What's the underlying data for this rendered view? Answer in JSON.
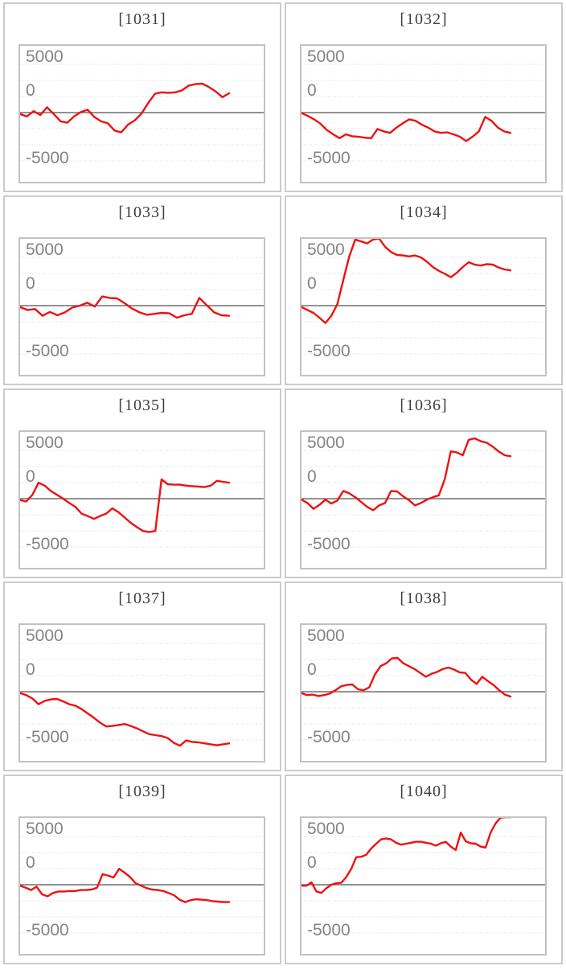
{
  "page": {
    "background": "#ffffff",
    "description_title_format": "bracketed id above each sparkline chart"
  },
  "style": {
    "series_color": "#ee1111",
    "zero_line_color": "#6e6e6e",
    "grid_color": "#d9d9d9",
    "plot_border_color": "#c2c2c2",
    "cell_border_color": "#cbcbcb",
    "title_color": "#3d3d3d",
    "tick_label_color": "#848484"
  },
  "axis": {
    "tick_labels": [
      "5000",
      "0",
      "-5000"
    ],
    "tick_values": [
      5000,
      0,
      -5000
    ],
    "ylim": [
      -7050,
      7050
    ],
    "minor_gridline_unit": 1667,
    "grid": "dotted horizontal minor gridlines, solid gray zero line, no x-axis labels"
  },
  "chart_data": [
    {
      "type": "line",
      "title": "[1031]",
      "yticks": [
        5000,
        0,
        -5000
      ],
      "ylim": [
        -7050,
        7050
      ],
      "values": [
        -150,
        -400,
        150,
        -250,
        550,
        -150,
        -900,
        -1050,
        -400,
        50,
        300,
        -450,
        -900,
        -1100,
        -1850,
        -2050,
        -1250,
        -800,
        -100,
        1000,
        1950,
        2100,
        2050,
        2100,
        2300,
        2800,
        2950,
        3000,
        2650,
        2200,
        1600,
        2000
      ]
    },
    {
      "type": "line",
      "title": "[1032]",
      "yticks": [
        5000,
        0,
        -5000
      ],
      "ylim": [
        -7050,
        7050
      ],
      "values": [
        -50,
        -350,
        -700,
        -1150,
        -1800,
        -2250,
        -2650,
        -2250,
        -2450,
        -2500,
        -2600,
        -2650,
        -1700,
        -1950,
        -2100,
        -1550,
        -1100,
        -700,
        -850,
        -1250,
        -1550,
        -1950,
        -2100,
        -2050,
        -2250,
        -2500,
        -2950,
        -2500,
        -1950,
        -450,
        -850,
        -1550,
        -1950,
        -2100
      ]
    },
    {
      "type": "line",
      "title": "[1033]",
      "yticks": [
        5000,
        0,
        -5000
      ],
      "ylim": [
        -7050,
        7050
      ],
      "values": [
        -150,
        -450,
        -350,
        -1050,
        -650,
        -1000,
        -700,
        -200,
        0,
        300,
        -100,
        950,
        800,
        750,
        250,
        -300,
        -700,
        -950,
        -850,
        -750,
        -800,
        -1250,
        -1000,
        -850,
        800,
        50,
        -700,
        -1000,
        -1050
      ]
    },
    {
      "type": "line",
      "title": "[1034]",
      "yticks": [
        5000,
        0,
        -5000
      ],
      "ylim": [
        -7050,
        7050
      ],
      "values": [
        -150,
        -450,
        -750,
        -1250,
        -1800,
        -1050,
        150,
        2650,
        5100,
        6850,
        6650,
        6450,
        6850,
        6950,
        6100,
        5550,
        5250,
        5200,
        5100,
        5200,
        5000,
        4550,
        4000,
        3600,
        3300,
        2950,
        3400,
        4000,
        4500,
        4250,
        4150,
        4300,
        4250,
        3950,
        3750,
        3650
      ]
    },
    {
      "type": "line",
      "title": "[1035]",
      "yticks": [
        5000,
        0,
        -5000
      ],
      "ylim": [
        -7050,
        7050
      ],
      "values": [
        -150,
        -300,
        400,
        1650,
        1350,
        800,
        400,
        0,
        -450,
        -850,
        -1550,
        -1800,
        -2100,
        -1800,
        -1550,
        -1000,
        -1400,
        -1950,
        -2500,
        -2950,
        -3350,
        -3450,
        -3350,
        2000,
        1500,
        1450,
        1450,
        1350,
        1300,
        1250,
        1200,
        1350,
        1850,
        1750,
        1650
      ]
    },
    {
      "type": "line",
      "title": "[1036]",
      "yticks": [
        5000,
        0,
        -5000
      ],
      "ylim": [
        -7050,
        7050
      ],
      "values": [
        -100,
        -450,
        -1050,
        -650,
        -100,
        -500,
        -200,
        800,
        550,
        150,
        -350,
        -850,
        -1200,
        -700,
        -450,
        800,
        750,
        250,
        -150,
        -700,
        -450,
        -100,
        150,
        350,
        2050,
        4900,
        4800,
        4500,
        6100,
        6250,
        5950,
        5800,
        5400,
        4900,
        4500,
        4400
      ]
    },
    {
      "type": "line",
      "title": "[1037]",
      "yticks": [
        5000,
        0,
        -5000
      ],
      "ylim": [
        -7050,
        7050
      ],
      "values": [
        -150,
        -350,
        -700,
        -1300,
        -950,
        -800,
        -750,
        -1000,
        -1300,
        -1450,
        -1800,
        -2250,
        -2700,
        -3200,
        -3600,
        -3550,
        -3450,
        -3350,
        -3550,
        -3800,
        -4100,
        -4400,
        -4500,
        -4600,
        -4800,
        -5300,
        -5600,
        -5050,
        -5200,
        -5250,
        -5350,
        -5450,
        -5550,
        -5450,
        -5350
      ]
    },
    {
      "type": "line",
      "title": "[1038]",
      "yticks": [
        5000,
        0,
        -5000
      ],
      "ylim": [
        -7050,
        7050
      ],
      "values": [
        -150,
        -350,
        -300,
        -450,
        -350,
        -200,
        150,
        550,
        700,
        750,
        250,
        150,
        450,
        1800,
        2650,
        2950,
        3450,
        3500,
        2950,
        2650,
        2350,
        1950,
        1550,
        1850,
        2050,
        2350,
        2500,
        2300,
        2000,
        1950,
        1250,
        800,
        1550,
        1100,
        700,
        150,
        -300,
        -500
      ]
    },
    {
      "type": "line",
      "title": "[1039]",
      "yticks": [
        5000,
        0,
        -5000
      ],
      "ylim": [
        -7050,
        7050
      ],
      "values": [
        -100,
        -300,
        -550,
        -200,
        -1000,
        -1200,
        -850,
        -700,
        -700,
        -650,
        -650,
        -550,
        -550,
        -500,
        -300,
        1100,
        950,
        750,
        1650,
        1250,
        800,
        150,
        -100,
        -350,
        -500,
        -550,
        -650,
        -850,
        -1100,
        -1550,
        -1800,
        -1600,
        -1500,
        -1550,
        -1600,
        -1700,
        -1750,
        -1800,
        -1800
      ]
    },
    {
      "type": "line",
      "title": "[1040]",
      "yticks": [
        5000,
        0,
        -5000
      ],
      "ylim": [
        -7050,
        7050
      ],
      "values": [
        -100,
        -100,
        250,
        -700,
        -850,
        -350,
        0,
        150,
        200,
        800,
        1650,
        2850,
        2900,
        3100,
        3750,
        4250,
        4700,
        4800,
        4700,
        4350,
        4150,
        4250,
        4350,
        4450,
        4450,
        4350,
        4250,
        4050,
        4300,
        4450,
        3950,
        3600,
        5400,
        4500,
        4300,
        4250,
        3950,
        3850,
        5400,
        6350,
        6950,
        7000,
        7000
      ]
    }
  ]
}
